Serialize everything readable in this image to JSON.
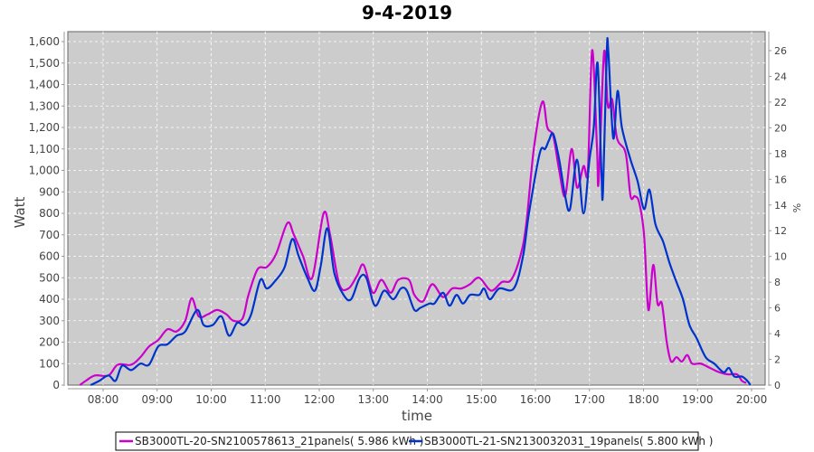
{
  "chart_data": {
    "type": "line",
    "title": "9-4-2019",
    "xlabel": "time",
    "ylabel": "Watt",
    "ylabel_right": "%",
    "xlim": [
      7.42,
      20.25
    ],
    "ylim": [
      0,
      1650
    ],
    "ylim_right": [
      0,
      27.4
    ],
    "grid": true,
    "legend_position": "bottom",
    "x_ticks": [
      8,
      9,
      10,
      11,
      12,
      13,
      14,
      15,
      16,
      17,
      18,
      19,
      20
    ],
    "x_tick_labels": [
      "08:00",
      "09:00",
      "10:00",
      "11:00",
      "12:00",
      "13:00",
      "14:00",
      "15:00",
      "16:00",
      "17:00",
      "18:00",
      "19:00",
      "20:00"
    ],
    "y_ticks": [
      0,
      100,
      200,
      300,
      400,
      500,
      600,
      700,
      800,
      900,
      1000,
      1100,
      1200,
      1300,
      1400,
      1500,
      1600
    ],
    "y_tick_labels": [
      "0",
      "100",
      "200",
      "300",
      "400",
      "500",
      "600",
      "700",
      "800",
      "900",
      "1,000",
      "1,100",
      "1,200",
      "1,300",
      "1,400",
      "1,500",
      "1,600"
    ],
    "y_right_ticks": [
      0,
      2,
      4,
      6,
      8,
      10,
      12,
      14,
      16,
      18,
      20,
      22,
      24,
      26
    ],
    "y_right_tick_labels": [
      "0",
      "2",
      "4",
      "6",
      "8",
      "10",
      "12",
      "14",
      "16",
      "18",
      "20",
      "22",
      "24",
      "26"
    ],
    "series": [
      {
        "name": "SB3000TL-20-SN2100578613_21panels( 5.986 kWh )",
        "color": "#cc00cc",
        "points": [
          [
            7.57,
            0
          ],
          [
            7.68,
            20
          ],
          [
            7.85,
            45
          ],
          [
            8.1,
            45
          ],
          [
            8.27,
            95
          ],
          [
            8.52,
            95
          ],
          [
            8.69,
            130
          ],
          [
            8.85,
            180
          ],
          [
            9.02,
            210
          ],
          [
            9.19,
            260
          ],
          [
            9.36,
            250
          ],
          [
            9.52,
            300
          ],
          [
            9.64,
            405
          ],
          [
            9.77,
            320
          ],
          [
            9.94,
            330
          ],
          [
            10.11,
            350
          ],
          [
            10.28,
            330
          ],
          [
            10.41,
            300
          ],
          [
            10.58,
            310
          ],
          [
            10.69,
            420
          ],
          [
            10.86,
            540
          ],
          [
            11.03,
            550
          ],
          [
            11.2,
            610
          ],
          [
            11.41,
            755
          ],
          [
            11.53,
            700
          ],
          [
            11.7,
            600
          ],
          [
            11.87,
            500
          ],
          [
            12.08,
            800
          ],
          [
            12.2,
            700
          ],
          [
            12.37,
            470
          ],
          [
            12.54,
            450
          ],
          [
            12.7,
            510
          ],
          [
            12.82,
            560
          ],
          [
            12.99,
            430
          ],
          [
            13.15,
            490
          ],
          [
            13.32,
            430
          ],
          [
            13.46,
            490
          ],
          [
            13.66,
            490
          ],
          [
            13.76,
            420
          ],
          [
            13.92,
            390
          ],
          [
            14.09,
            470
          ],
          [
            14.29,
            410
          ],
          [
            14.46,
            450
          ],
          [
            14.63,
            450
          ],
          [
            14.79,
            470
          ],
          [
            14.96,
            500
          ],
          [
            15.18,
            440
          ],
          [
            15.38,
            480
          ],
          [
            15.55,
            490
          ],
          [
            15.72,
            600
          ],
          [
            15.83,
            750
          ],
          [
            15.97,
            1100
          ],
          [
            16.13,
            1320
          ],
          [
            16.22,
            1200
          ],
          [
            16.33,
            1160
          ],
          [
            16.44,
            1000
          ],
          [
            16.55,
            880
          ],
          [
            16.67,
            1100
          ],
          [
            16.77,
            920
          ],
          [
            16.89,
            1020
          ],
          [
            16.97,
            1000
          ],
          [
            17.05,
            1560
          ],
          [
            17.14,
            1100
          ],
          [
            17.17,
            950
          ],
          [
            17.27,
            1550
          ],
          [
            17.34,
            1300
          ],
          [
            17.42,
            1330
          ],
          [
            17.51,
            1150
          ],
          [
            17.67,
            1080
          ],
          [
            17.76,
            880
          ],
          [
            17.84,
            880
          ],
          [
            17.92,
            850
          ],
          [
            18.01,
            700
          ],
          [
            18.09,
            350
          ],
          [
            18.18,
            560
          ],
          [
            18.26,
            380
          ],
          [
            18.34,
            380
          ],
          [
            18.43,
            200
          ],
          [
            18.51,
            110
          ],
          [
            18.61,
            130
          ],
          [
            18.71,
            110
          ],
          [
            18.81,
            140
          ],
          [
            18.9,
            100
          ],
          [
            19.06,
            100
          ],
          [
            19.23,
            80
          ],
          [
            19.4,
            60
          ],
          [
            19.56,
            50
          ],
          [
            19.73,
            50
          ],
          [
            19.82,
            20
          ],
          [
            19.9,
            10
          ]
        ]
      },
      {
        "name": "SB3000TL-21-SN2130032031_19panels( 5.800 kWh )",
        "color": "#0033cc",
        "points": [
          [
            7.77,
            0
          ],
          [
            7.93,
            20
          ],
          [
            8.1,
            45
          ],
          [
            8.23,
            20
          ],
          [
            8.35,
            90
          ],
          [
            8.52,
            70
          ],
          [
            8.69,
            100
          ],
          [
            8.85,
            95
          ],
          [
            9.02,
            180
          ],
          [
            9.19,
            190
          ],
          [
            9.36,
            230
          ],
          [
            9.52,
            250
          ],
          [
            9.74,
            350
          ],
          [
            9.86,
            280
          ],
          [
            10.03,
            280
          ],
          [
            10.19,
            320
          ],
          [
            10.33,
            230
          ],
          [
            10.48,
            290
          ],
          [
            10.61,
            280
          ],
          [
            10.74,
            330
          ],
          [
            10.91,
            490
          ],
          [
            11.03,
            450
          ],
          [
            11.2,
            490
          ],
          [
            11.36,
            550
          ],
          [
            11.5,
            680
          ],
          [
            11.62,
            600
          ],
          [
            11.78,
            500
          ],
          [
            11.92,
            440
          ],
          [
            12.03,
            560
          ],
          [
            12.15,
            730
          ],
          [
            12.28,
            520
          ],
          [
            12.45,
            420
          ],
          [
            12.59,
            400
          ],
          [
            12.75,
            500
          ],
          [
            12.87,
            500
          ],
          [
            13.03,
            370
          ],
          [
            13.2,
            440
          ],
          [
            13.37,
            400
          ],
          [
            13.51,
            450
          ],
          [
            13.62,
            440
          ],
          [
            13.76,
            350
          ],
          [
            13.87,
            360
          ],
          [
            14.04,
            380
          ],
          [
            14.13,
            380
          ],
          [
            14.29,
            430
          ],
          [
            14.41,
            370
          ],
          [
            14.54,
            420
          ],
          [
            14.66,
            380
          ],
          [
            14.79,
            420
          ],
          [
            14.96,
            420
          ],
          [
            15.05,
            450
          ],
          [
            15.16,
            400
          ],
          [
            15.33,
            450
          ],
          [
            15.6,
            450
          ],
          [
            15.77,
            600
          ],
          [
            15.88,
            800
          ],
          [
            16.08,
            1080
          ],
          [
            16.18,
            1100
          ],
          [
            16.25,
            1140
          ],
          [
            16.33,
            1170
          ],
          [
            16.44,
            1050
          ],
          [
            16.55,
            880
          ],
          [
            16.64,
            820
          ],
          [
            16.77,
            1050
          ],
          [
            16.89,
            800
          ],
          [
            17.0,
            1050
          ],
          [
            17.08,
            1200
          ],
          [
            17.15,
            1500
          ],
          [
            17.22,
            1000
          ],
          [
            17.25,
            900
          ],
          [
            17.32,
            1550
          ],
          [
            17.35,
            1550
          ],
          [
            17.44,
            1150
          ],
          [
            17.52,
            1370
          ],
          [
            17.6,
            1200
          ],
          [
            17.76,
            1050
          ],
          [
            17.89,
            950
          ],
          [
            18.01,
            820
          ],
          [
            18.11,
            910
          ],
          [
            18.22,
            750
          ],
          [
            18.36,
            670
          ],
          [
            18.48,
            570
          ],
          [
            18.61,
            480
          ],
          [
            18.73,
            400
          ],
          [
            18.85,
            280
          ],
          [
            18.98,
            220
          ],
          [
            19.15,
            130
          ],
          [
            19.31,
            100
          ],
          [
            19.48,
            60
          ],
          [
            19.58,
            80
          ],
          [
            19.68,
            40
          ],
          [
            19.82,
            40
          ],
          [
            19.92,
            20
          ],
          [
            19.98,
            0
          ]
        ]
      }
    ]
  }
}
